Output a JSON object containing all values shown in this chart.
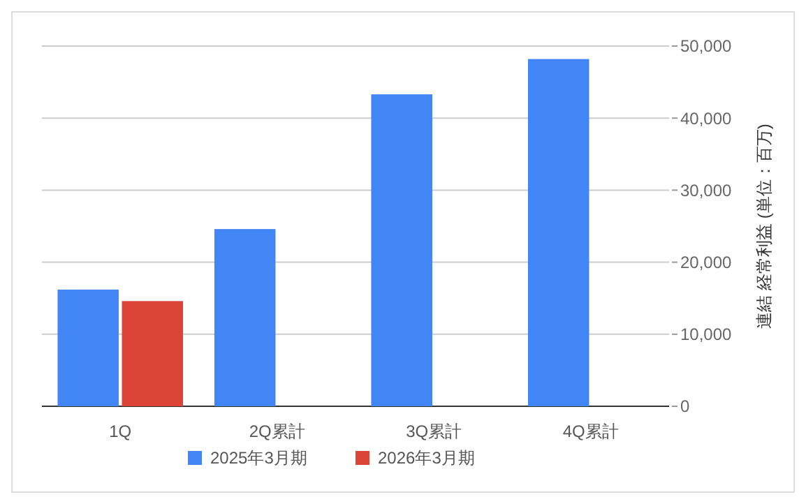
{
  "chart_data": {
    "type": "bar",
    "ylabel": "連結 経常利益 (単位：百万)",
    "categories": [
      "1Q",
      "2Q累計",
      "3Q累計",
      "4Q累計"
    ],
    "series": [
      {
        "name": "2025年3月期",
        "color": "#4285f4",
        "values": [
          16200,
          24600,
          43300,
          48200
        ]
      },
      {
        "name": "2026年3月期",
        "color": "#db4437",
        "values": [
          14600,
          null,
          null,
          null
        ]
      }
    ],
    "ylim": [
      0,
      50000
    ],
    "yticks": [
      {
        "value": 0,
        "label": "0"
      },
      {
        "value": 10000,
        "label": "10,000"
      },
      {
        "value": 20000,
        "label": "20,000"
      },
      {
        "value": 30000,
        "label": "30,000"
      },
      {
        "value": 40000,
        "label": "40,000"
      },
      {
        "value": 50000,
        "label": "50,000"
      }
    ],
    "grid": true,
    "legend": "bottom"
  }
}
